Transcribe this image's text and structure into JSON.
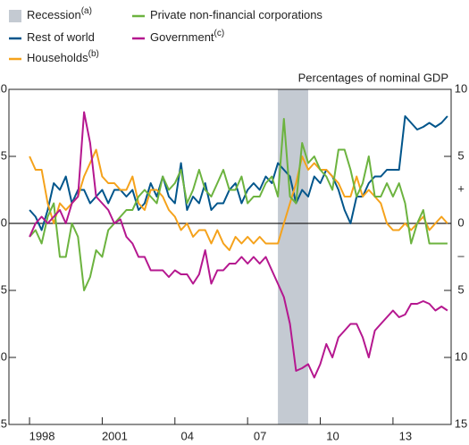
{
  "chart_data": {
    "type": "line",
    "unit_label": "Percentages of nominal GDP",
    "sign_labels": [
      "+",
      "–"
    ],
    "shading": {
      "name": "Recession",
      "footnote": "(a)",
      "start": 2008.25,
      "end": 2009.5,
      "color": "#c4cad2"
    },
    "x": [
      1998,
      1998.25,
      1998.5,
      1998.75,
      1999,
      1999.25,
      1999.5,
      1999.75,
      2000,
      2000.25,
      2000.5,
      2000.75,
      2001,
      2001.25,
      2001.5,
      2001.75,
      2002,
      2002.25,
      2002.5,
      2002.75,
      2003,
      2003.25,
      2003.5,
      2003.75,
      2004,
      2004.25,
      2004.5,
      2004.75,
      2005,
      2005.25,
      2005.5,
      2005.75,
      2006,
      2006.25,
      2006.5,
      2006.75,
      2007,
      2007.25,
      2007.5,
      2007.75,
      2008,
      2008.25,
      2008.5,
      2008.75,
      2009,
      2009.25,
      2009.5,
      2009.75,
      2010,
      2010.25,
      2010.5,
      2010.75,
      2011,
      2011.25,
      2011.5,
      2011.75,
      2012,
      2012.25,
      2012.5,
      2012.75,
      2013,
      2013.25,
      2013.5,
      2013.75,
      2014,
      2014.25,
      2014.5,
      2014.75,
      2015,
      2015.25
    ],
    "series": [
      {
        "name": "Rest of world",
        "color": "#00558b",
        "values": [
          1,
          0.5,
          -0.5,
          1,
          3,
          2.5,
          3.5,
          1.5,
          2.5,
          2.5,
          1.5,
          2,
          2.5,
          1.5,
          2.5,
          2.5,
          2,
          2.5,
          1,
          1.5,
          3,
          2,
          3.5,
          2,
          1.5,
          4.5,
          1,
          2,
          1.5,
          3,
          1,
          1.5,
          1.5,
          2.5,
          3,
          1.5,
          2.5,
          3,
          2.5,
          3.5,
          3,
          4.5,
          4,
          3.5,
          1.5,
          2.5,
          2,
          3.5,
          3,
          4,
          3.5,
          2.5,
          1,
          0,
          2,
          2,
          3,
          3.5,
          3.5,
          4,
          4,
          4,
          8,
          7.5,
          7,
          7.2,
          7.5,
          7.2,
          7.5,
          8
        ]
      },
      {
        "name": "Households",
        "footnote": "(b)",
        "color": "#f5a21b",
        "values": [
          5,
          4,
          4,
          1.5,
          0,
          1.5,
          1,
          1.5,
          2,
          3.5,
          4.5,
          5.5,
          3.5,
          3,
          3,
          2.5,
          2.5,
          3.5,
          1.5,
          1,
          2.5,
          2.5,
          2,
          1,
          0.5,
          -0.5,
          0,
          -1,
          -0.5,
          -0.5,
          -1.5,
          -0.5,
          -1.5,
          -2,
          -1,
          -1.5,
          -1,
          -1.5,
          -1,
          -1.5,
          -1.5,
          -1.5,
          0,
          1.5,
          3,
          5,
          4,
          4.5,
          4,
          4,
          3.5,
          3,
          2,
          2,
          3.5,
          2,
          2.5,
          2,
          1.5,
          0,
          -0.5,
          -0.5,
          0,
          -0.5,
          0,
          0.5,
          -0.5,
          0,
          0.5,
          0
        ]
      },
      {
        "name": "Private non-financial corporations",
        "color": "#6cb33f",
        "values": [
          -1,
          -0.5,
          -1.5,
          0.5,
          1.5,
          -2.5,
          -2.5,
          0,
          -1,
          -5,
          -4,
          -2,
          -2.5,
          -0.5,
          0,
          0.5,
          1,
          1,
          2,
          2.5,
          2,
          1.5,
          3.5,
          2.5,
          3,
          4,
          1.5,
          2.5,
          4,
          2.5,
          2,
          3,
          4,
          2.5,
          2.5,
          3.5,
          1.5,
          2,
          2,
          3,
          3.5,
          2,
          7.8,
          2,
          1.5,
          6,
          4.5,
          5,
          4,
          3.5,
          2.5,
          5.5,
          5.5,
          4,
          2,
          3,
          5,
          2,
          2,
          3,
          2,
          3,
          1.5,
          -1.5,
          0,
          1,
          -1.5,
          -1.5,
          -1.5,
          -1.5
        ]
      },
      {
        "name": "Government",
        "footnote": "(c)",
        "color": "#b5178f",
        "values": [
          -1,
          0,
          0.5,
          0,
          0.5,
          1,
          0,
          1.5,
          2,
          8.3,
          6,
          2,
          1.5,
          1,
          0,
          0.3,
          -1,
          -1.5,
          -2.5,
          -2.5,
          -3.5,
          -3.5,
          -3.5,
          -4,
          -3.5,
          -3.8,
          -3.8,
          -4.5,
          -3.8,
          -2,
          -4.5,
          -3.5,
          -3.5,
          -3,
          -3,
          -2.5,
          -3,
          -2.5,
          -3,
          -2.5,
          -3.5,
          -4.5,
          -5.5,
          -7.5,
          -11,
          -10.8,
          -10.5,
          -11.5,
          -10.5,
          -9,
          -10,
          -8.5,
          -8,
          -7.5,
          -7.5,
          -8.5,
          -10,
          -8,
          -7.5,
          -7,
          -6.5,
          -7,
          -6.8,
          -6,
          -6,
          -5.8,
          -6,
          -6.5,
          -6.2,
          -6.5
        ]
      }
    ],
    "xlim": [
      1997.15,
      2015.4
    ],
    "xticks": [
      1998,
      2001,
      {
        "value": 2004,
        "label": "04"
      },
      {
        "value": 2007,
        "label": "07"
      },
      {
        "value": 2010,
        "label": "10"
      },
      {
        "value": 2013,
        "label": "13"
      }
    ],
    "ylim": [
      -15,
      10
    ],
    "yticks": [
      {
        "value": -15,
        "label": "15"
      },
      {
        "value": -10,
        "label": "10"
      },
      {
        "value": -5,
        "label": "5"
      },
      0,
      5,
      10
    ]
  }
}
